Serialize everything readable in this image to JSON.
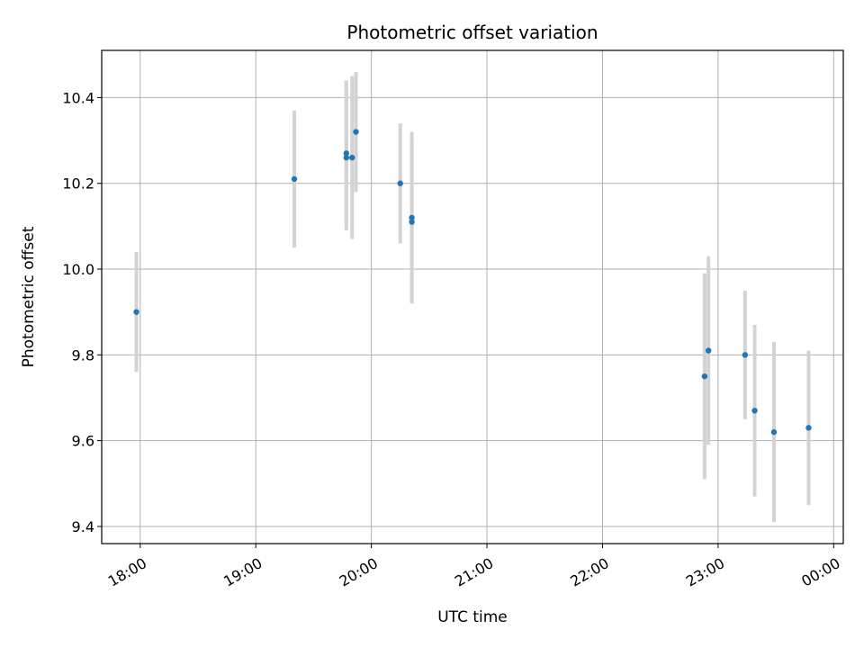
{
  "chart_data": {
    "type": "scatter",
    "title": "Photometric offset variation",
    "xlabel": "UTC time",
    "ylabel": "Photometric offset",
    "x_tick_labels": [
      "18:00",
      "19:00",
      "20:00",
      "21:00",
      "22:00",
      "23:00",
      "00:00"
    ],
    "x_ticks": [
      "18:00",
      "19:00",
      "20:00",
      "21:00",
      "22:00",
      "23:00",
      "24:00"
    ],
    "xlim": [
      "17:40",
      "24:05"
    ],
    "y_ticks": [
      9.4,
      9.6,
      9.8,
      10.0,
      10.2,
      10.4
    ],
    "y_tick_labels": [
      "9.4",
      "9.6",
      "9.8",
      "10.0",
      "10.2",
      "10.4"
    ],
    "ylim": [
      9.36,
      10.51
    ],
    "grid": true,
    "colors": {
      "points": "#1f77b4",
      "errorbars": "#d3d3d3",
      "grid": "#b0b0b0"
    },
    "points": [
      {
        "x": "17:58",
        "y": 9.9,
        "yerr": 0.14
      },
      {
        "x": "19:20",
        "y": 10.21,
        "yerr": 0.16
      },
      {
        "x": "19:47",
        "y": 10.27,
        "yerr": 0.17
      },
      {
        "x": "19:47",
        "y": 10.26,
        "yerr": 0.17
      },
      {
        "x": "19:50",
        "y": 10.26,
        "yerr": 0.19
      },
      {
        "x": "19:52",
        "y": 10.32,
        "yerr": 0.14
      },
      {
        "x": "20:15",
        "y": 10.2,
        "yerr": 0.14
      },
      {
        "x": "20:21",
        "y": 10.12,
        "yerr": 0.2
      },
      {
        "x": "20:21",
        "y": 10.11,
        "yerr": 0.19
      },
      {
        "x": "22:53",
        "y": 9.75,
        "yerr": 0.24
      },
      {
        "x": "22:55",
        "y": 9.81,
        "yerr": 0.22
      },
      {
        "x": "23:14",
        "y": 9.8,
        "yerr": 0.15
      },
      {
        "x": "23:19",
        "y": 9.67,
        "yerr": 0.2
      },
      {
        "x": "23:29",
        "y": 9.62,
        "yerr": 0.21
      },
      {
        "x": "23:47",
        "y": 9.63,
        "yerr": 0.18
      }
    ]
  }
}
